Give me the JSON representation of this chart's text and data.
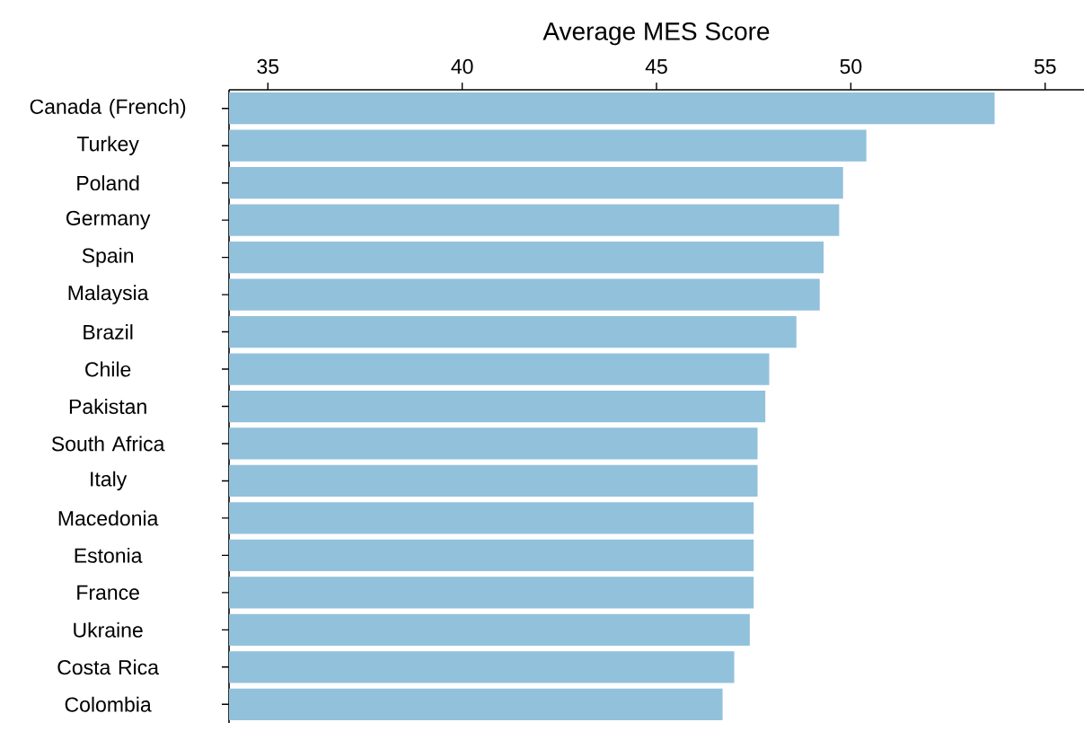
{
  "chart_data": {
    "type": "bar",
    "orientation": "horizontal",
    "xlabel": "Average MES Score",
    "categories": [
      "Canada (French)",
      "Turkey",
      "Poland",
      "Germany",
      "Spain",
      "Malaysia",
      "Brazil",
      "Chile",
      "Pakistan",
      "South Africa",
      "Italy",
      "Macedonia",
      "Estonia",
      "France",
      "Ukraine",
      "Costa Rica",
      "Colombia"
    ],
    "values": [
      53.7,
      50.4,
      49.8,
      49.7,
      49.3,
      49.2,
      48.6,
      47.9,
      47.8,
      47.6,
      47.6,
      47.5,
      47.5,
      47.5,
      47.4,
      47.0,
      46.7
    ],
    "color": "#92c1dc",
    "xlim": [
      34,
      56
    ],
    "xticks": [
      35,
      40,
      45,
      50,
      55
    ]
  }
}
